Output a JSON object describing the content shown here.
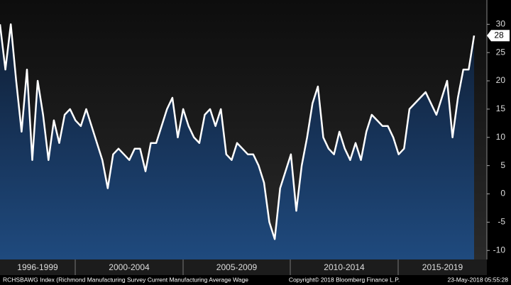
{
  "chart_data": {
    "type": "area-line",
    "xtick_labels": [
      "1996-1999",
      "2000-2004",
      "2005-2009",
      "2010-2014",
      "2015-2019"
    ],
    "values": [
      30,
      22,
      30,
      20,
      11,
      22,
      6,
      20,
      14,
      6,
      13,
      9,
      14,
      15,
      13,
      12,
      15,
      12,
      9,
      6,
      1,
      7,
      8,
      7,
      6,
      8,
      8,
      4,
      9,
      9,
      12,
      15,
      17,
      10,
      15,
      12,
      10,
      9,
      14,
      15,
      12,
      15,
      7,
      6,
      9,
      8,
      7,
      7,
      5,
      2,
      -5,
      -8,
      1,
      4,
      7,
      -3,
      5,
      10,
      16,
      19,
      10,
      8,
      7,
      11,
      8,
      6,
      9,
      6,
      11,
      14,
      13,
      12,
      12,
      10,
      7,
      8,
      15,
      16,
      17,
      18,
      16,
      14,
      17,
      20,
      10,
      17,
      22,
      22,
      28
    ],
    "color": "#ffffff",
    "ylim": [
      -11.6,
      34.3
    ],
    "yticks": [
      -10,
      -5,
      0,
      5,
      10,
      15,
      20,
      25,
      30
    ],
    "footer_left": "RCHSBAWG Index (Richmond Manufacturing Survey Current Manufacturing Average Wage",
    "footer_center": "Copyright© 2018 Bloomberg Finance L.P.",
    "footer_right": "23-May-2018 05:55:28"
  }
}
